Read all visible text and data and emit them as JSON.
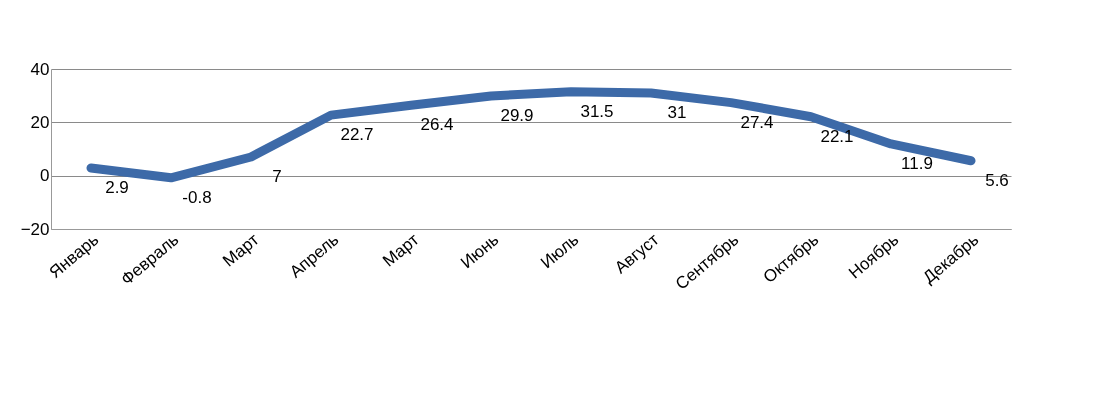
{
  "chart_data": {
    "type": "line",
    "categories": [
      "Январь",
      "Февраль",
      "Март",
      "Апрель",
      "Март",
      "Июнь",
      "Июль",
      "Август",
      "Сентябрь",
      "Октябрь",
      "Ноябрь",
      "Декабрь"
    ],
    "series": [
      {
        "color": "#3d6aa8",
        "values": [
          2.9,
          -0.8,
          7,
          22.7,
          26.4,
          29.9,
          31.5,
          31,
          27.4,
          22.1,
          11.9,
          5.6
        ]
      }
    ],
    "ylim": [
      -20,
      40
    ],
    "yticks": [
      -20,
      0,
      20,
      40
    ],
    "grid": "y",
    "data_labels": true,
    "marker": "none",
    "line_style": "solid"
  }
}
